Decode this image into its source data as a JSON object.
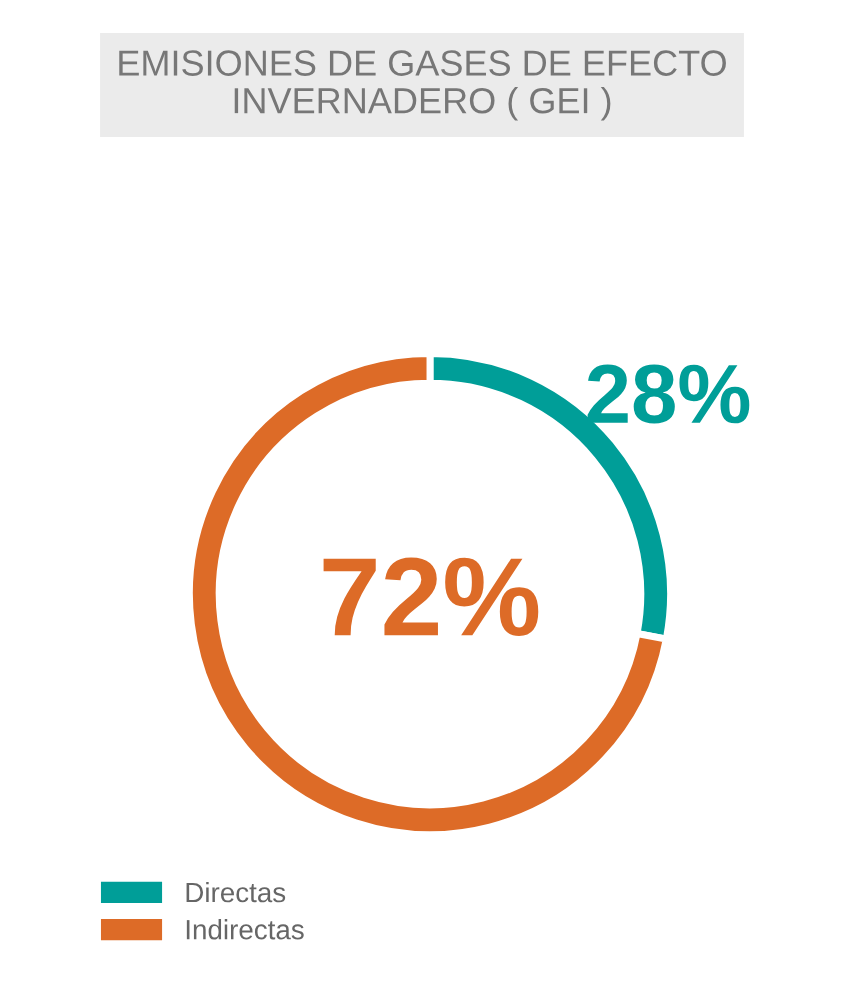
{
  "chart_data": {
    "type": "donut",
    "title": "EMISIONES DE GASES DE EFECTO\nINVERNADERO ( GEI )",
    "categories": [
      "Directas",
      "Indirectas"
    ],
    "values": [
      28,
      72
    ],
    "colors": [
      "#009e98",
      "#dd6b27"
    ],
    "value_labels": [
      "28%",
      "72%"
    ],
    "legend": "bottom left"
  }
}
